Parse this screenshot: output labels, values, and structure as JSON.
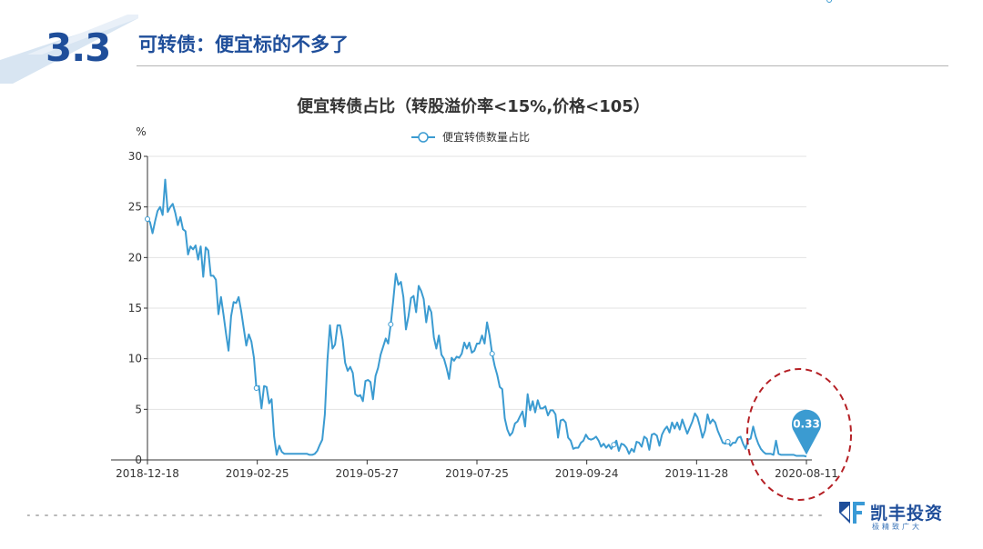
{
  "section": {
    "number": "3.3",
    "title": "可转债：便宜标的不多了"
  },
  "brand": {
    "name": "凯丰投资",
    "slogan": "极精致广大",
    "color": "#1f4e9a"
  },
  "chart_data": {
    "type": "line",
    "title": "便宜转债占比（转股溢价率<15%,价格<105）",
    "ylabel": "%",
    "ylim": [
      0,
      30
    ],
    "yticks": [
      0,
      5,
      10,
      15,
      20,
      25,
      30
    ],
    "xticks": [
      "2018-12-18",
      "2019-02-25",
      "2019-05-27",
      "2019-07-25",
      "2019-09-24",
      "2019-11-28",
      "2020-08-11"
    ],
    "legend": {
      "position": "top-center"
    },
    "grid": true,
    "series": [
      {
        "name": "便宜转债数量占比",
        "color": "#3b9bd1",
        "values": [
          23.8,
          23.5,
          22.4,
          23.6,
          24.6,
          25.0,
          24.2,
          27.7,
          24.5,
          25.0,
          25.3,
          24.4,
          23.2,
          24.0,
          22.8,
          22.6,
          20.3,
          21.1,
          20.8,
          21.2,
          19.8,
          21.1,
          18.1,
          21.0,
          20.7,
          18.2,
          18.2,
          17.8,
          14.4,
          16.1,
          14.4,
          12.5,
          10.8,
          14.2,
          15.6,
          15.5,
          16.1,
          14.7,
          13.0,
          11.3,
          12.4,
          11.7,
          10.1,
          7.1,
          7.3,
          5.1,
          7.3,
          7.2,
          5.6,
          6.0,
          2.3,
          0.5,
          1.4,
          0.8,
          0.6,
          0.6,
          0.6,
          0.6,
          0.6,
          0.6,
          0.6,
          0.6,
          0.6,
          0.6,
          0.5,
          0.5,
          0.6,
          0.9,
          1.5,
          2.0,
          4.5,
          9.8,
          13.3,
          11.0,
          11.4,
          13.3,
          13.3,
          11.9,
          9.6,
          8.8,
          9.2,
          8.6,
          6.5,
          6.3,
          6.4,
          5.8,
          7.8,
          7.9,
          7.7,
          6.0,
          8.3,
          9.1,
          10.4,
          11.2,
          12.0,
          11.5,
          13.4,
          15.8,
          18.4,
          17.3,
          17.6,
          16.1,
          12.9,
          14.2,
          16.0,
          16.2,
          14.6,
          17.2,
          16.7,
          15.9,
          13.6,
          15.2,
          14.6,
          12.1,
          11.0,
          12.3,
          10.4,
          10.0,
          9.1,
          8.0,
          10.1,
          9.8,
          10.2,
          10.1,
          10.5,
          11.6,
          11.0,
          11.6,
          10.6,
          10.8,
          11.5,
          11.5,
          12.3,
          11.5,
          13.6,
          12.3,
          10.5,
          9.3,
          8.4,
          7.2,
          7.0,
          4.1,
          3.0,
          2.4,
          2.7,
          3.6,
          3.8,
          4.3,
          4.8,
          3.3,
          6.5,
          4.9,
          5.8,
          4.7,
          5.9,
          5.1,
          5.1,
          5.3,
          4.4,
          4.9,
          4.9,
          4.5,
          2.2,
          3.9,
          4.0,
          3.7,
          2.2,
          1.9,
          1.1,
          1.2,
          1.2,
          1.7,
          1.9,
          2.5,
          2.1,
          2.0,
          2.1,
          2.3,
          1.9,
          1.3,
          1.6,
          1.2,
          1.5,
          1.1,
          1.5,
          1.9,
          0.9,
          1.6,
          1.5,
          1.2,
          0.6,
          1.1,
          0.8,
          1.8,
          1.7,
          1.3,
          2.3,
          2.1,
          1.0,
          2.5,
          2.6,
          2.4,
          1.4,
          2.5,
          3.0,
          3.3,
          2.7,
          3.7,
          3.1,
          3.7,
          3.0,
          4.0,
          3.3,
          2.6,
          3.2,
          3.8,
          4.6,
          4.2,
          3.3,
          2.2,
          2.9,
          4.5,
          3.6,
          4.0,
          3.7,
          2.9,
          2.3,
          1.7,
          1.6,
          1.8,
          1.4,
          1.7,
          1.7,
          2.2,
          2.3,
          1.6,
          1.1,
          2.0,
          2.1,
          3.3,
          2.3,
          1.6,
          1.1,
          0.8,
          0.6,
          0.6,
          0.6,
          0.5,
          1.9,
          0.6,
          0.5,
          0.5,
          0.5,
          0.5,
          0.5,
          0.5,
          0.4,
          0.4,
          0.4,
          0.4,
          0.33
        ],
        "markers": [
          0,
          43,
          96,
          136,
          184,
          229,
          269
        ],
        "last_value_label": "0.33"
      }
    ]
  }
}
